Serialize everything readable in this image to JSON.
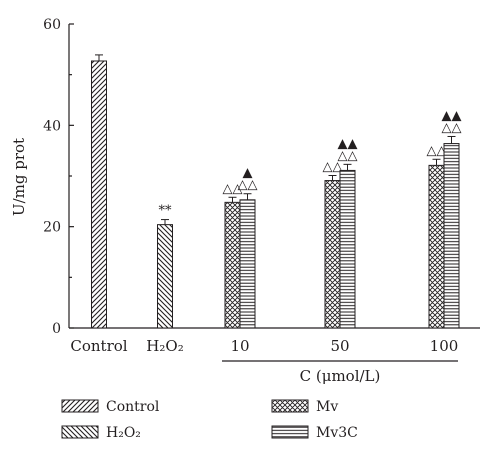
{
  "chart_data": {
    "type": "bar",
    "ylabel": "U/mg prot",
    "xlabel": "C (μmol/L)",
    "ylim": [
      0,
      60
    ],
    "yticks": [
      "0",
      "20",
      "40",
      "60"
    ],
    "groups": [
      {
        "label": "Control",
        "bars": [
          {
            "series": "Control",
            "value": 52.7,
            "err": 1.2,
            "annotation": ""
          }
        ]
      },
      {
        "label": "H₂O₂",
        "bars": [
          {
            "series": "H₂O₂",
            "value": 20.4,
            "err": 1.0,
            "annotation": "**"
          }
        ]
      },
      {
        "label": "10",
        "bars": [
          {
            "series": "Mv",
            "value": 24.8,
            "err": 1.0,
            "annotation": "△△"
          },
          {
            "series": "Mv3C",
            "value": 25.3,
            "err": 1.2,
            "annotation": "▲\n△△"
          }
        ]
      },
      {
        "label": "50",
        "bars": [
          {
            "series": "Mv",
            "value": 29.1,
            "err": 1.0,
            "annotation": "△△"
          },
          {
            "series": "Mv3C",
            "value": 31.1,
            "err": 1.2,
            "annotation": "▲▲\n△△"
          }
        ]
      },
      {
        "label": "100",
        "bars": [
          {
            "series": "Mv",
            "value": 32.1,
            "err": 1.2,
            "annotation": "△△"
          },
          {
            "series": "Mv3C",
            "value": 36.4,
            "err": 1.4,
            "annotation": "▲▲\n△△"
          }
        ]
      }
    ],
    "legend": [
      {
        "name": "Control",
        "pattern": "diag-fwd"
      },
      {
        "name": "Mv",
        "pattern": "crosshatch"
      },
      {
        "name": "H₂O₂",
        "pattern": "diag-back"
      },
      {
        "name": "Mv3C",
        "pattern": "horizontal"
      }
    ],
    "grid": false,
    "legend_position": "bottom"
  }
}
